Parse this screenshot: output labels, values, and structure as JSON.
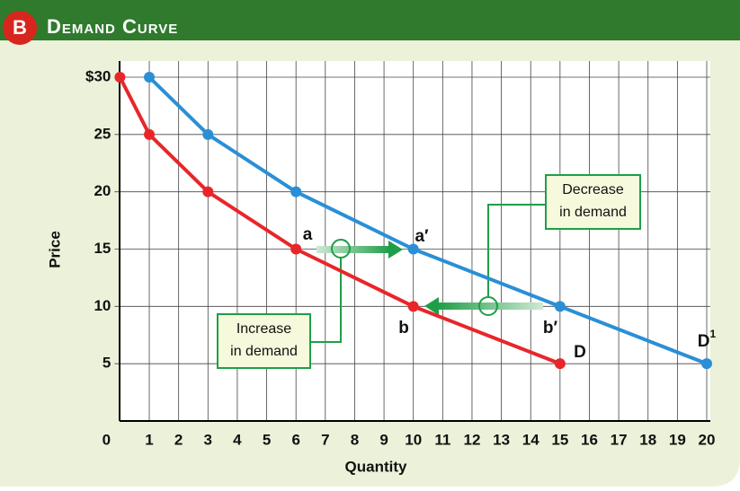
{
  "badge": "B",
  "header": "Demand Curve",
  "chart_data": {
    "type": "line",
    "xlabel": "Quantity",
    "ylabel": "Price",
    "xlim": [
      0,
      20
    ],
    "ylim": [
      0,
      30
    ],
    "xticks": [
      0,
      1,
      2,
      3,
      4,
      5,
      6,
      7,
      8,
      9,
      10,
      11,
      12,
      13,
      14,
      15,
      16,
      17,
      18,
      19,
      20
    ],
    "yticks": [
      {
        "value": 30,
        "label": "$30"
      },
      25,
      20,
      15,
      10,
      5
    ],
    "grid": true,
    "series": [
      {
        "name": "D",
        "color": "#e8262a",
        "x": [
          0,
          1,
          3,
          6,
          10,
          15
        ],
        "values": [
          30,
          25,
          20,
          15,
          10,
          5
        ]
      },
      {
        "name": "D1",
        "color": "#2a8fd6",
        "x": [
          1,
          3,
          6,
          10,
          15,
          20
        ],
        "values": [
          30,
          25,
          20,
          15,
          10,
          5
        ]
      }
    ],
    "annotations": [
      {
        "text": "a"
      },
      {
        "text": "a′"
      },
      {
        "text": "b"
      },
      {
        "text": "b′"
      },
      {
        "text": "D"
      },
      {
        "text": "D",
        "sup": "1"
      }
    ],
    "boxes": [
      {
        "lines": [
          "Increase",
          "in demand"
        ]
      },
      {
        "lines": [
          "Decrease",
          "in demand"
        ]
      }
    ]
  }
}
